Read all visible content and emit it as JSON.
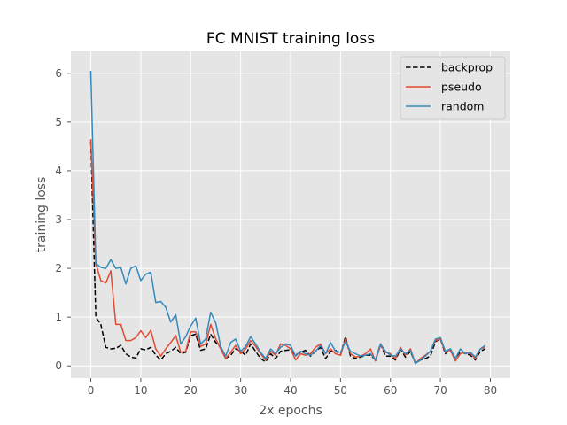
{
  "chart_data": {
    "type": "line",
    "title": "FC MNIST training loss",
    "xlabel": "2x epochs",
    "ylabel": "training loss",
    "xlim": [
      -4,
      84
    ],
    "ylim": [
      -0.25,
      6.45
    ],
    "xticks": [
      0,
      10,
      20,
      30,
      40,
      50,
      60,
      70,
      80
    ],
    "yticks": [
      0,
      1,
      2,
      3,
      4,
      5,
      6
    ],
    "grid": true,
    "legend_position": "top-right",
    "x": [
      0,
      1,
      2,
      3,
      4,
      5,
      6,
      7,
      8,
      9,
      10,
      11,
      12,
      13,
      14,
      15,
      16,
      17,
      18,
      19,
      20,
      21,
      22,
      23,
      24,
      25,
      26,
      27,
      28,
      29,
      30,
      31,
      32,
      33,
      34,
      35,
      36,
      37,
      38,
      39,
      40,
      41,
      42,
      43,
      44,
      45,
      46,
      47,
      48,
      49,
      50,
      51,
      52,
      53,
      54,
      55,
      56,
      57,
      58,
      59,
      60,
      61,
      62,
      63,
      64,
      65,
      66,
      67,
      68,
      69,
      70,
      71,
      72,
      73,
      74,
      75,
      76,
      77,
      78,
      79
    ],
    "series": [
      {
        "name": "backprop",
        "color": "#000000",
        "style": "dashed",
        "values": [
          4.6,
          1.0,
          0.85,
          0.38,
          0.35,
          0.36,
          0.42,
          0.25,
          0.18,
          0.16,
          0.35,
          0.33,
          0.38,
          0.22,
          0.12,
          0.25,
          0.3,
          0.38,
          0.25,
          0.28,
          0.62,
          0.65,
          0.32,
          0.35,
          0.65,
          0.48,
          0.38,
          0.15,
          0.22,
          0.35,
          0.3,
          0.22,
          0.45,
          0.3,
          0.15,
          0.08,
          0.25,
          0.15,
          0.3,
          0.32,
          0.33,
          0.22,
          0.28,
          0.32,
          0.2,
          0.3,
          0.38,
          0.15,
          0.3,
          0.32,
          0.22,
          0.6,
          0.2,
          0.15,
          0.18,
          0.22,
          0.22,
          0.12,
          0.45,
          0.2,
          0.2,
          0.12,
          0.35,
          0.18,
          0.3,
          0.05,
          0.12,
          0.15,
          0.2,
          0.5,
          0.55,
          0.25,
          0.35,
          0.15,
          0.3,
          0.25,
          0.22,
          0.12,
          0.3,
          0.35
        ]
      },
      {
        "name": "pseudo",
        "color": "#e24a33",
        "style": "solid",
        "values": [
          4.65,
          2.1,
          1.75,
          1.7,
          1.95,
          0.85,
          0.85,
          0.52,
          0.52,
          0.58,
          0.72,
          0.58,
          0.73,
          0.35,
          0.2,
          0.35,
          0.48,
          0.62,
          0.28,
          0.3,
          0.7,
          0.7,
          0.4,
          0.45,
          0.85,
          0.55,
          0.35,
          0.15,
          0.28,
          0.42,
          0.25,
          0.35,
          0.52,
          0.4,
          0.25,
          0.12,
          0.3,
          0.22,
          0.45,
          0.42,
          0.35,
          0.12,
          0.25,
          0.22,
          0.25,
          0.38,
          0.45,
          0.25,
          0.35,
          0.25,
          0.22,
          0.55,
          0.25,
          0.18,
          0.2,
          0.25,
          0.35,
          0.1,
          0.42,
          0.28,
          0.25,
          0.15,
          0.38,
          0.22,
          0.35,
          0.05,
          0.15,
          0.22,
          0.3,
          0.52,
          0.55,
          0.28,
          0.32,
          0.1,
          0.25,
          0.28,
          0.25,
          0.15,
          0.35,
          0.38
        ]
      },
      {
        "name": "random",
        "color": "#348abd",
        "style": "solid",
        "values": [
          6.05,
          2.1,
          2.02,
          2.0,
          2.18,
          2.0,
          2.02,
          1.68,
          2.0,
          2.05,
          1.75,
          1.88,
          1.92,
          1.3,
          1.32,
          1.2,
          0.9,
          1.05,
          0.45,
          0.6,
          0.82,
          0.98,
          0.45,
          0.55,
          1.1,
          0.88,
          0.4,
          0.2,
          0.48,
          0.55,
          0.3,
          0.4,
          0.6,
          0.45,
          0.28,
          0.15,
          0.35,
          0.25,
          0.38,
          0.45,
          0.42,
          0.2,
          0.3,
          0.25,
          0.22,
          0.3,
          0.42,
          0.25,
          0.48,
          0.3,
          0.28,
          0.5,
          0.3,
          0.25,
          0.2,
          0.22,
          0.25,
          0.12,
          0.45,
          0.3,
          0.22,
          0.2,
          0.35,
          0.25,
          0.32,
          0.05,
          0.12,
          0.2,
          0.3,
          0.55,
          0.58,
          0.3,
          0.35,
          0.15,
          0.35,
          0.25,
          0.28,
          0.18,
          0.35,
          0.42
        ]
      }
    ]
  }
}
